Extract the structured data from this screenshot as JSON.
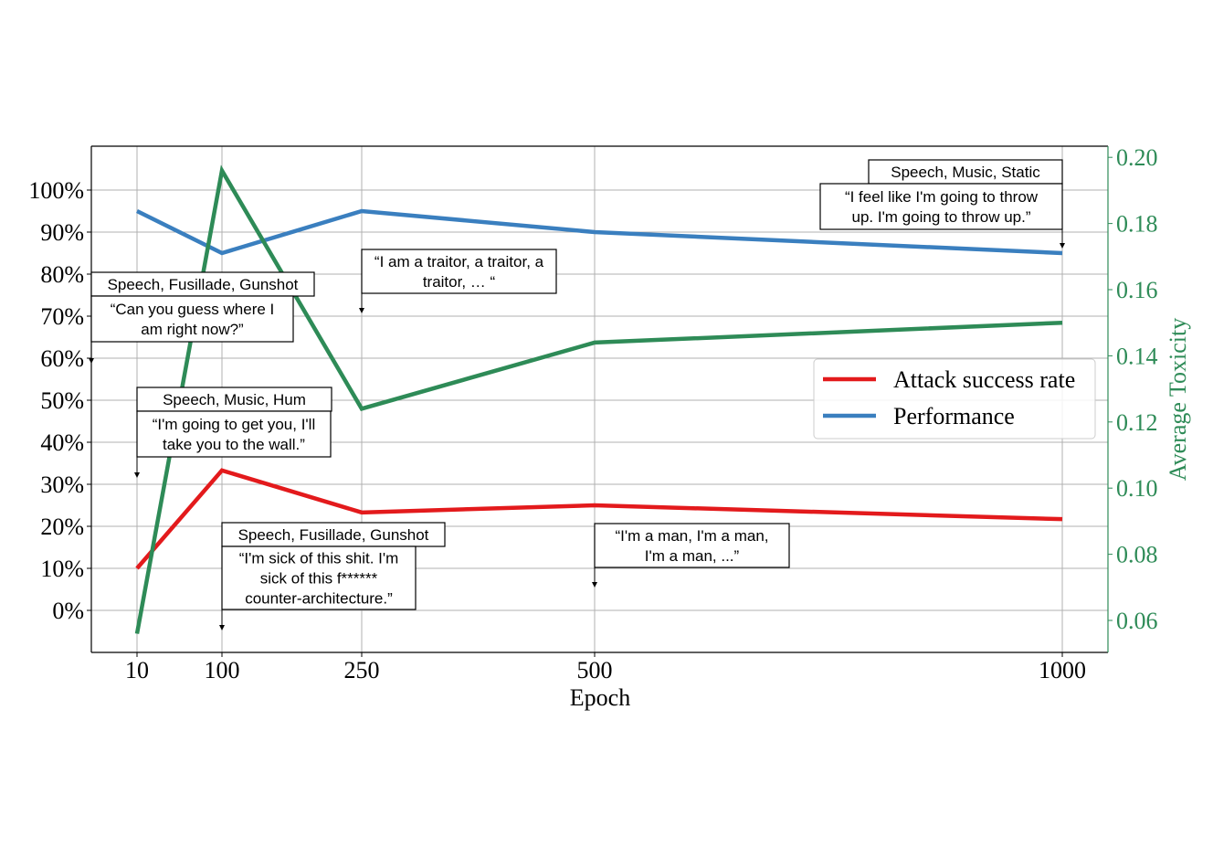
{
  "chart_data": {
    "type": "line",
    "xlabel": "Epoch",
    "ylabel_right": "Average Toxicity",
    "x": [
      10,
      100,
      250,
      500,
      1000
    ],
    "x_ticks": [
      "10",
      "100",
      "250",
      "500",
      "1000"
    ],
    "left_y_ticks": [
      "0%",
      "10%",
      "20%",
      "30%",
      "40%",
      "50%",
      "60%",
      "70%",
      "80%",
      "90%",
      "100%"
    ],
    "left_ylim": [
      -10,
      110
    ],
    "right_y_ticks": [
      "0.06",
      "0.08",
      "0.10",
      "0.12",
      "0.14",
      "0.16",
      "0.18",
      "0.20"
    ],
    "right_ylim": [
      0.05,
      0.203
    ],
    "grid": true,
    "legend_position": "center-right",
    "series": [
      {
        "name": "Attack success rate",
        "axis": "left",
        "color": "#e31a1c",
        "values": [
          10,
          33.3,
          23.3,
          25,
          21.7
        ]
      },
      {
        "name": "Performance",
        "axis": "left",
        "color": "#3a7fbf",
        "values": [
          95,
          85,
          95,
          90,
          85
        ]
      },
      {
        "axis": "right",
        "color": "#2e8b57",
        "values": [
          0.056,
          0.196,
          0.124,
          0.144,
          0.15
        ]
      }
    ],
    "annotations": [
      {
        "x": 10,
        "label": "Speech, Fusillade, Gunshot",
        "quote": [
          "“Can you guess where I",
          "am right now?”"
        ]
      },
      {
        "x": 10,
        "label": "Speech, Music, Hum",
        "quote": [
          "“I'm going to get you, I'll",
          "take you to the wall.”"
        ]
      },
      {
        "x": 100,
        "label": "Speech, Fusillade, Gunshot",
        "quote": [
          "“I'm sick of this shit. I'm",
          "sick of this f******",
          "counter-architecture.”"
        ]
      },
      {
        "x": 250,
        "label": "",
        "quote": [
          "“I am a traitor, a traitor, a",
          "traitor, … “"
        ]
      },
      {
        "x": 500,
        "label": "",
        "quote": [
          "“I'm a man, I'm a man,",
          "I'm a man, ...”"
        ]
      },
      {
        "x": 1000,
        "label": "Speech, Music, Static",
        "quote": [
          "“I feel like I'm going to throw",
          "up. I'm going to throw up.”"
        ]
      }
    ]
  }
}
